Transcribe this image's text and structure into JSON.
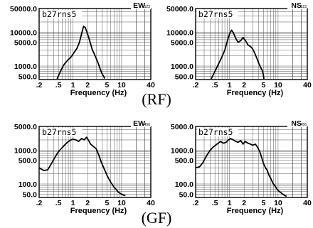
{
  "captions": {
    "top": "(RF)",
    "bottom": "(GF)"
  },
  "chart_data": [
    {
      "type": "line",
      "row_caption": "(RF)",
      "station": "b27rns5",
      "component": "EW",
      "component_sub": "123",
      "xlabel": "Frequency (Hz)",
      "xscale": "log",
      "yscale": "log",
      "xlim": [
        0.2,
        40
      ],
      "ylim": [
        400,
        50000
      ],
      "xticks": [
        {
          "v": 0.2,
          "label": ".2"
        },
        {
          "v": 0.5,
          "label": ".5"
        },
        {
          "v": 1,
          "label": "1"
        },
        {
          "v": 2,
          "label": "2"
        },
        {
          "v": 5,
          "label": "5"
        },
        {
          "v": 10,
          "label": "10"
        },
        {
          "v": 40,
          "label": "40"
        }
      ],
      "yticks": [
        {
          "v": 500,
          "label": "500.0"
        },
        {
          "v": 1000,
          "label": "1000.0"
        },
        {
          "v": 5000,
          "label": "5000.0"
        },
        {
          "v": 10000,
          "label": "10000.0"
        },
        {
          "v": 50000,
          "label": "50000.0"
        }
      ],
      "grid": true,
      "series": [
        {
          "x": [
            0.47,
            0.55,
            0.65,
            0.78,
            0.92,
            1.05,
            1.2,
            1.35,
            1.5,
            1.65,
            1.8,
            1.95,
            2.1,
            2.3,
            2.5,
            2.7,
            3.0,
            3.3,
            3.6,
            3.9,
            4.2,
            4.5
          ],
          "y": [
            420,
            700,
            1100,
            1500,
            1900,
            2500,
            3300,
            5000,
            9000,
            15000,
            13500,
            9500,
            7000,
            4500,
            3000,
            2400,
            1700,
            1200,
            850,
            620,
            520,
            430
          ]
        }
      ]
    },
    {
      "type": "line",
      "row_caption": "(RF)",
      "station": "b27rns5",
      "component": "NS",
      "component_sub": "123",
      "xlabel": "Frequency (Hz)",
      "xscale": "log",
      "yscale": "log",
      "xlim": [
        0.2,
        40
      ],
      "ylim": [
        400,
        50000
      ],
      "xticks": [
        {
          "v": 0.2,
          "label": ".2"
        },
        {
          "v": 0.5,
          "label": ".5"
        },
        {
          "v": 1,
          "label": "1"
        },
        {
          "v": 2,
          "label": "2"
        },
        {
          "v": 5,
          "label": "5"
        },
        {
          "v": 10,
          "label": "10"
        },
        {
          "v": 40,
          "label": "40"
        }
      ],
      "yticks": [
        {
          "v": 500,
          "label": "500.0"
        },
        {
          "v": 1000,
          "label": "1000.0"
        },
        {
          "v": 5000,
          "label": "5000.0"
        },
        {
          "v": 10000,
          "label": "10000.0"
        },
        {
          "v": 50000,
          "label": "50000.0"
        }
      ],
      "grid": true,
      "series": [
        {
          "x": [
            0.42,
            0.5,
            0.6,
            0.7,
            0.8,
            0.9,
            1.0,
            1.1,
            1.2,
            1.35,
            1.5,
            1.7,
            1.9,
            2.1,
            2.4,
            2.7,
            3.0,
            3.3,
            3.6,
            4.0,
            4.4,
            4.8,
            5.0,
            5.1
          ],
          "y": [
            420,
            700,
            1200,
            1900,
            3000,
            5500,
            9000,
            11500,
            9500,
            6500,
            5000,
            5600,
            7000,
            5800,
            4200,
            3800,
            3200,
            2400,
            1800,
            1200,
            900,
            700,
            520,
            420
          ]
        }
      ]
    },
    {
      "type": "line",
      "row_caption": "(GF)",
      "station": "b27rns5",
      "component": "EW",
      "component_sub": "456",
      "xlabel": "Frequency (Hz)",
      "xscale": "log",
      "yscale": "log",
      "xlim": [
        0.2,
        40
      ],
      "ylim": [
        40,
        5000
      ],
      "xticks": [
        {
          "v": 0.2,
          "label": ".2"
        },
        {
          "v": 0.5,
          "label": ".5"
        },
        {
          "v": 1,
          "label": "1"
        },
        {
          "v": 2,
          "label": "2"
        },
        {
          "v": 5,
          "label": "5"
        },
        {
          "v": 10,
          "label": "10"
        },
        {
          "v": 40,
          "label": "40"
        }
      ],
      "yticks": [
        {
          "v": 50,
          "label": "50.0"
        },
        {
          "v": 100,
          "label": "100.0"
        },
        {
          "v": 500,
          "label": "500.0"
        },
        {
          "v": 1000,
          "label": "1000.0"
        },
        {
          "v": 5000,
          "label": "5000.0"
        }
      ],
      "grid": true,
      "series": [
        {
          "x": [
            0.2,
            0.25,
            0.3,
            0.35,
            0.42,
            0.5,
            0.6,
            0.7,
            0.8,
            0.9,
            1.0,
            1.15,
            1.3,
            1.5,
            1.7,
            1.9,
            2.1,
            2.3,
            2.6,
            3.0,
            3.4,
            3.8,
            4.2,
            4.6,
            5.0,
            5.5,
            6.0,
            6.5,
            7.0,
            7.5,
            8.0,
            8.5,
            9.0,
            9.5,
            10,
            10.5,
            11,
            11.5,
            12
          ],
          "y": [
            300,
            250,
            260,
            380,
            600,
            900,
            1200,
            1500,
            1800,
            2000,
            2100,
            2000,
            1800,
            2200,
            2000,
            2400,
            1900,
            1500,
            1300,
            1100,
            700,
            450,
            320,
            240,
            180,
            140,
            110,
            95,
            80,
            72,
            65,
            58,
            55,
            52,
            50,
            48,
            47,
            46,
            45
          ]
        }
      ]
    },
    {
      "type": "line",
      "row_caption": "(GF)",
      "station": "b27rns5",
      "component": "NS",
      "component_sub": "456",
      "xlabel": "Frequency (Hz)",
      "xscale": "log",
      "yscale": "log",
      "xlim": [
        0.2,
        40
      ],
      "ylim": [
        40,
        5000
      ],
      "xticks": [
        {
          "v": 0.2,
          "label": ".2"
        },
        {
          "v": 0.5,
          "label": ".5"
        },
        {
          "v": 1,
          "label": "1"
        },
        {
          "v": 2,
          "label": "2"
        },
        {
          "v": 5,
          "label": "5"
        },
        {
          "v": 10,
          "label": "10"
        },
        {
          "v": 40,
          "label": "40"
        }
      ],
      "yticks": [
        {
          "v": 50,
          "label": "50.0"
        },
        {
          "v": 100,
          "label": "100.0"
        },
        {
          "v": 500,
          "label": "500.0"
        },
        {
          "v": 1000,
          "label": "1000.0"
        },
        {
          "v": 5000,
          "label": "5000.0"
        }
      ],
      "grid": true,
      "series": [
        {
          "x": [
            0.2,
            0.24,
            0.28,
            0.32,
            0.38,
            0.45,
            0.55,
            0.65,
            0.75,
            0.85,
            0.95,
            1.05,
            1.2,
            1.35,
            1.5,
            1.7,
            1.9,
            2.1,
            2.4,
            2.7,
            3.0,
            3.4,
            3.8,
            4.2,
            4.6,
            5.0,
            5.5,
            6.0,
            6.5,
            7.0,
            7.5,
            8.0,
            8.5,
            9.0,
            9.5,
            10,
            10.5,
            11,
            11.5,
            12,
            12.5,
            13,
            13.5,
            14,
            14.5,
            15
          ],
          "y": [
            300,
            320,
            420,
            600,
            900,
            1200,
            1500,
            1800,
            1600,
            1700,
            2000,
            2200,
            2000,
            1800,
            1700,
            1900,
            1500,
            1800,
            1600,
            1500,
            1400,
            1500,
            1200,
            900,
            600,
            400,
            300,
            250,
            180,
            150,
            120,
            100,
            90,
            80,
            70,
            65,
            60,
            58,
            55,
            52,
            50,
            48,
            46,
            45,
            44,
            44
          ]
        }
      ]
    }
  ]
}
